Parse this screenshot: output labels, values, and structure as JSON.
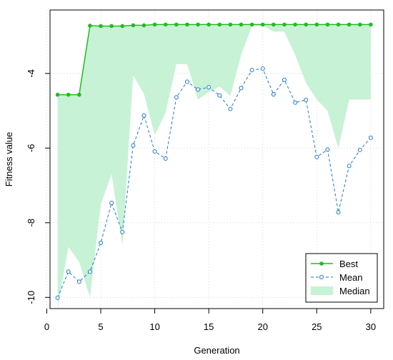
{
  "chart_data": {
    "type": "line",
    "xlabel": "Generation",
    "ylabel": "Fitness value",
    "xlim": [
      0.3,
      31.2
    ],
    "ylim": [
      -10.3,
      -2.3
    ],
    "xticks": [
      0,
      5,
      10,
      15,
      20,
      25,
      30
    ],
    "yticks": [
      -10,
      -8,
      -6,
      -4
    ],
    "grid": true,
    "legend_position": "bottom-right",
    "x": [
      1,
      2,
      3,
      4,
      5,
      6,
      7,
      8,
      9,
      10,
      11,
      12,
      13,
      14,
      15,
      16,
      17,
      18,
      19,
      20,
      21,
      22,
      23,
      24,
      25,
      26,
      27,
      28,
      29,
      30
    ],
    "series": [
      {
        "name": "Best",
        "type": "line",
        "color": "#22bb22",
        "values": [
          -4.57,
          -4.57,
          -4.57,
          -2.72,
          -2.73,
          -2.73,
          -2.73,
          -2.71,
          -2.71,
          -2.69,
          -2.69,
          -2.69,
          -2.69,
          -2.69,
          -2.69,
          -2.69,
          -2.69,
          -2.69,
          -2.69,
          -2.69,
          -2.69,
          -2.69,
          -2.69,
          -2.69,
          -2.69,
          -2.69,
          -2.69,
          -2.69,
          -2.69,
          -2.69
        ]
      },
      {
        "name": "Mean",
        "type": "line",
        "color": "#1f78d1",
        "values": [
          -10.01,
          -9.31,
          -9.58,
          -9.31,
          -8.54,
          -7.47,
          -8.25,
          -5.93,
          -5.13,
          -6.09,
          -6.28,
          -4.64,
          -4.22,
          -4.43,
          -4.37,
          -4.59,
          -4.95,
          -4.39,
          -3.91,
          -3.87,
          -4.56,
          -4.17,
          -4.78,
          -4.71,
          -6.24,
          -6.04,
          -7.72,
          -6.48,
          -6.05,
          -5.72
        ]
      },
      {
        "name": "Median",
        "type": "area",
        "color": "#c7f2d5",
        "values": [
          -10.3,
          -8.65,
          -9.05,
          -10.0,
          -7.5,
          -6.7,
          -8.6,
          -4.05,
          -4.55,
          -5.65,
          -5.05,
          -3.75,
          -3.75,
          -4.7,
          -4.5,
          -4.35,
          -4.6,
          -3.5,
          -2.72,
          -2.72,
          -2.88,
          -2.88,
          -3.5,
          -4.25,
          -4.7,
          -5.0,
          -6.0,
          -4.7,
          -4.7,
          -4.7
        ]
      }
    ]
  }
}
